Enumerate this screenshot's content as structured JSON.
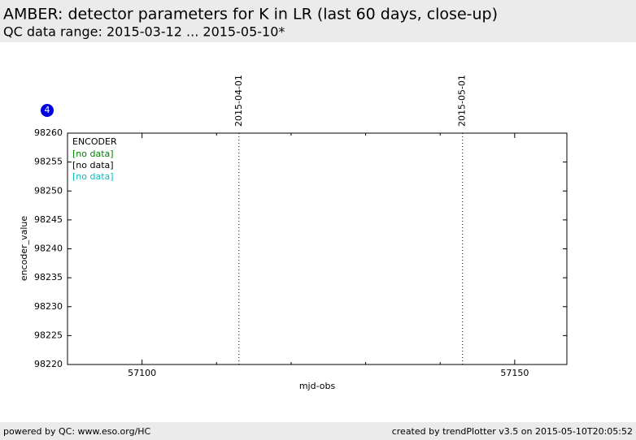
{
  "header": {
    "title": "AMBER: detector parameters for K in LR (last 60 days, close-up)",
    "subtitle": "QC data range: 2015-03-12 ... 2015-05-10*"
  },
  "badge": "4",
  "chart_data": {
    "type": "line",
    "xlabel": "mjd-obs",
    "ylabel": "encoder_value",
    "xlim": [
      57090,
      57157
    ],
    "xticks": [
      57100,
      57150
    ],
    "xminor": [
      57110,
      57120,
      57130,
      57140
    ],
    "ylim": [
      98220,
      98260
    ],
    "yticks": [
      98220,
      98225,
      98230,
      98235,
      98240,
      98245,
      98250,
      98255,
      98260
    ],
    "vlines": [
      {
        "x": 57113,
        "label": "2015-04-01"
      },
      {
        "x": 57143,
        "label": "2015-05-01"
      }
    ],
    "legend_title": "ENCODER",
    "legend": "upper left",
    "x": [],
    "series": [
      {
        "name": "[no data]",
        "color": "#008000",
        "values": []
      },
      {
        "name": "[no data]",
        "color": "#000000",
        "values": []
      },
      {
        "name": "[no data]",
        "color": "#00bfbf",
        "values": []
      }
    ]
  },
  "footer": {
    "left": "powered by QC: www.eso.org/HC",
    "right": "created by trendPlotter v3.5 on 2015-05-10T20:05:52"
  }
}
